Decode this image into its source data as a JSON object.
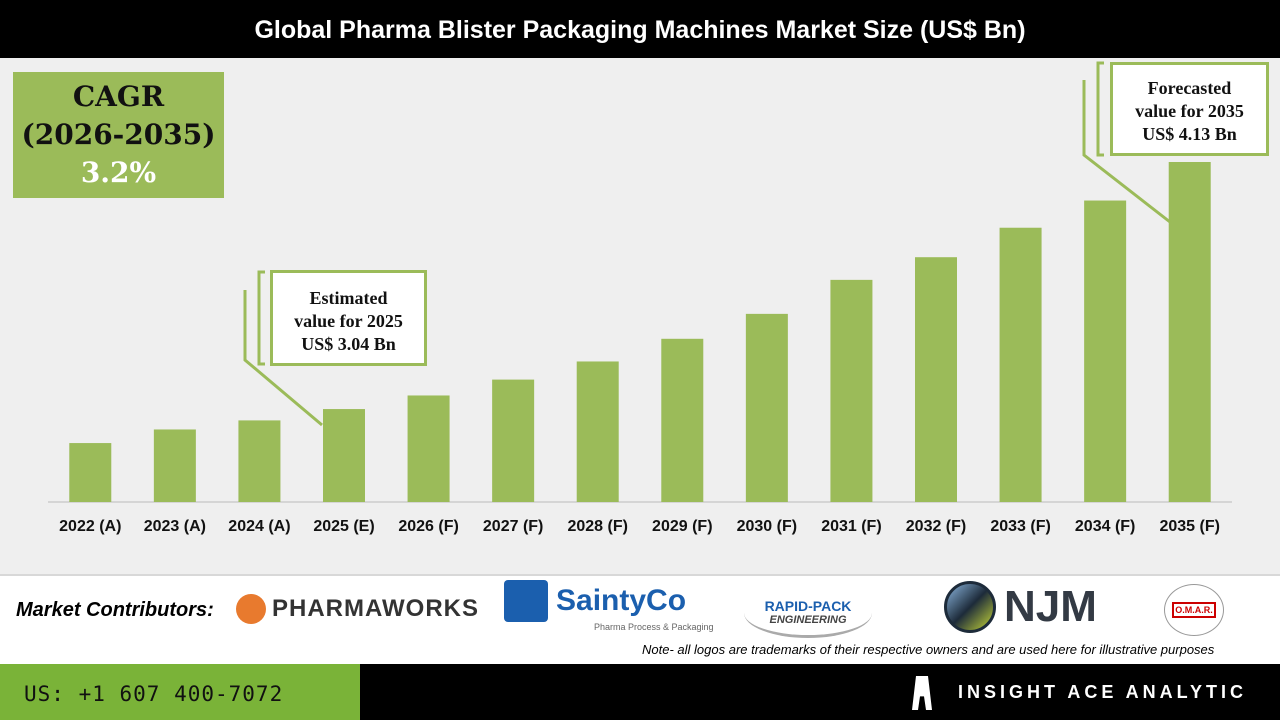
{
  "header": {
    "title": "Global Pharma Blister Packaging Machines Market Size (US$ Bn)"
  },
  "cagr": {
    "label": "CAGR",
    "period": "(2026-2035)",
    "value": "3.2%"
  },
  "callouts": {
    "estimated": {
      "line1": "Estimated",
      "line2": "value for 2025",
      "line3": "US$ 3.04 Bn"
    },
    "forecast": {
      "line1": "Forecasted",
      "line2": "value for 2035",
      "line3": "US$ 4.13 Bn"
    }
  },
  "chart_data": {
    "type": "bar",
    "title": "Global Pharma Blister Packaging Machines Market Size (US$ Bn)",
    "categories": [
      "2022 (A)",
      "2023 (A)",
      "2024 (A)",
      "2025 (E)",
      "2026 (F)",
      "2027 (F)",
      "2028 (F)",
      "2029 (F)",
      "2030 (F)",
      "2031 (F)",
      "2032 (F)",
      "2033 (F)",
      "2034 (F)",
      "2035 (F)"
    ],
    "values": [
      2.89,
      2.95,
      2.99,
      3.04,
      3.1,
      3.17,
      3.25,
      3.35,
      3.46,
      3.61,
      3.71,
      3.84,
      3.96,
      4.13
    ],
    "ylim": [
      2.63,
      4.13
    ],
    "grid": false,
    "color": "#9bbb59"
  },
  "contributors": {
    "label": "Market Contributors:",
    "logos": [
      "PHARMAWORKS",
      "SaintyCo",
      "Pharma Process & Packaging",
      "RAPID-PACK",
      "ENGINEERING",
      "NJM",
      "O.M.A.R."
    ]
  },
  "note": "Note- all logos are trademarks of their respective owners and are used here for illustrative purposes",
  "footer": {
    "phone": "US: +1 607 400-7072",
    "brand": "INSIGHT ACE ANALYTIC"
  }
}
